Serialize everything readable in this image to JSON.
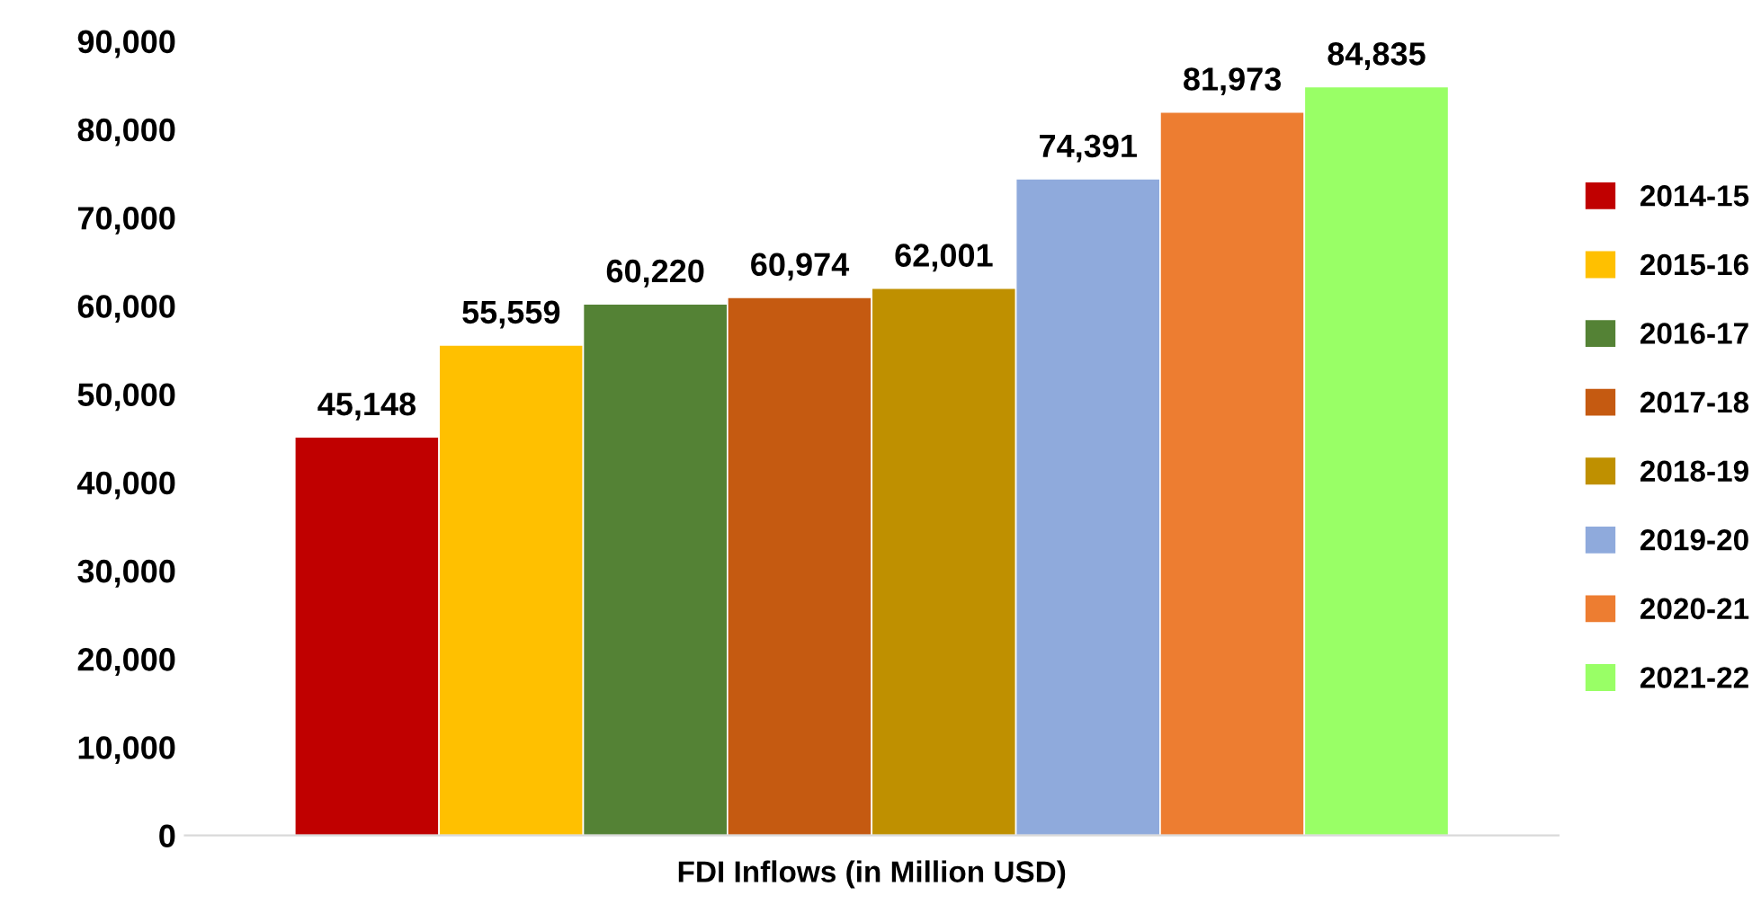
{
  "chart_data": {
    "type": "bar",
    "categories": [
      "FDI Inflows (in Million USD)"
    ],
    "series": [
      {
        "name": "2014-15",
        "color": "#c00000",
        "values": [
          45148
        ],
        "value_labels": [
          "45,148"
        ]
      },
      {
        "name": "2015-16",
        "color": "#ffc000",
        "values": [
          55559
        ],
        "value_labels": [
          "55,559"
        ]
      },
      {
        "name": "2016-17",
        "color": "#548235",
        "values": [
          60220
        ],
        "value_labels": [
          "60,220"
        ]
      },
      {
        "name": "2017-18",
        "color": "#c55a11",
        "values": [
          60974
        ],
        "value_labels": [
          "60,974"
        ]
      },
      {
        "name": "2018-19",
        "color": "#bf9000",
        "values": [
          62001
        ],
        "value_labels": [
          "62,001"
        ]
      },
      {
        "name": "2019-20",
        "color": "#8faadc",
        "values": [
          74391
        ],
        "value_labels": [
          "74,391"
        ]
      },
      {
        "name": "2020-21",
        "color": "#ed7d31",
        "values": [
          81973
        ],
        "value_labels": [
          "81,973"
        ]
      },
      {
        "name": "2021-22",
        "color": "#99ff66",
        "values": [
          84835
        ],
        "value_labels": [
          "84,835"
        ]
      }
    ],
    "ylim": [
      0,
      90000
    ],
    "yticks": [
      {
        "value": 0,
        "label": "0"
      },
      {
        "value": 10000,
        "label": "10,000"
      },
      {
        "value": 20000,
        "label": "20,000"
      },
      {
        "value": 30000,
        "label": "30,000"
      },
      {
        "value": 40000,
        "label": "40,000"
      },
      {
        "value": 50000,
        "label": "50,000"
      },
      {
        "value": 60000,
        "label": "60,000"
      },
      {
        "value": 70000,
        "label": "70,000"
      },
      {
        "value": 80000,
        "label": "80,000"
      },
      {
        "value": 90000,
        "label": "90,000"
      }
    ],
    "grid": false,
    "legend": "right"
  }
}
